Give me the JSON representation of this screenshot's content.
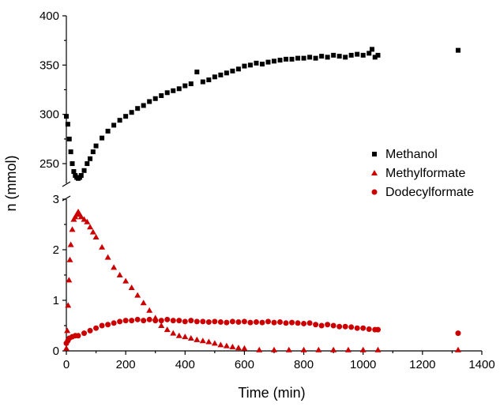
{
  "chart_data": {
    "type": "scatter",
    "xlabel": "Time (min)",
    "ylabel": "n (mmol)",
    "xlim": [
      0,
      1400
    ],
    "x_ticks": [
      "0",
      "200",
      "400",
      "600",
      "800",
      "1000",
      "1200",
      "1400"
    ],
    "y_break": true,
    "upper_panel": {
      "ylim": [
        230,
        400
      ],
      "y_ticks": [
        "250",
        "300",
        "350",
        "400"
      ]
    },
    "lower_panel": {
      "ylim": [
        0,
        3
      ],
      "y_ticks": [
        "0",
        "1",
        "2",
        "3"
      ]
    },
    "legend_placement": "right",
    "colors": {
      "Methanol": "#000000",
      "Methylformate": "#cc0000",
      "Dodecylformate": "#cc0000"
    },
    "series": [
      {
        "name": "Methanol",
        "marker": "square",
        "panel": "upper",
        "x": [
          0,
          5,
          10,
          15,
          20,
          25,
          30,
          35,
          40,
          45,
          50,
          60,
          70,
          80,
          90,
          100,
          120,
          140,
          160,
          180,
          200,
          220,
          240,
          260,
          280,
          300,
          320,
          340,
          360,
          380,
          400,
          420,
          440,
          460,
          480,
          500,
          520,
          540,
          560,
          580,
          600,
          620,
          640,
          660,
          680,
          700,
          720,
          740,
          760,
          780,
          800,
          820,
          840,
          860,
          880,
          900,
          920,
          940,
          960,
          980,
          1000,
          1020,
          1030,
          1040,
          1050,
          1320
        ],
        "y": [
          298,
          290,
          275,
          262,
          250,
          242,
          238,
          236,
          235,
          236,
          238,
          243,
          250,
          255,
          262,
          268,
          276,
          283,
          289,
          294,
          298,
          302,
          306,
          309,
          313,
          316,
          319,
          322,
          324,
          326,
          329,
          331,
          343,
          333,
          335,
          338,
          340,
          342,
          344,
          346,
          349,
          350,
          352,
          351,
          353,
          354,
          355,
          356,
          356,
          357,
          357,
          358,
          357,
          359,
          358,
          360,
          359,
          358,
          360,
          361,
          360,
          362,
          366,
          358,
          360,
          365
        ]
      },
      {
        "name": "Methylformate",
        "marker": "triangle",
        "panel": "lower",
        "x": [
          0,
          3,
          6,
          9,
          12,
          15,
          20,
          25,
          30,
          35,
          40,
          45,
          50,
          60,
          70,
          80,
          90,
          100,
          120,
          140,
          160,
          180,
          200,
          220,
          240,
          260,
          280,
          300,
          320,
          340,
          360,
          380,
          400,
          420,
          440,
          460,
          480,
          500,
          520,
          540,
          560,
          580,
          600,
          650,
          700,
          750,
          800,
          850,
          900,
          950,
          1000,
          1050,
          1320
        ],
        "y": [
          0.05,
          0.4,
          0.9,
          1.4,
          1.8,
          2.1,
          2.4,
          2.6,
          2.65,
          2.7,
          2.75,
          2.7,
          2.65,
          2.6,
          2.55,
          2.45,
          2.35,
          2.25,
          2.05,
          1.85,
          1.65,
          1.5,
          1.38,
          1.25,
          1.1,
          0.95,
          0.8,
          0.65,
          0.5,
          0.42,
          0.35,
          0.3,
          0.28,
          0.25,
          0.22,
          0.2,
          0.18,
          0.15,
          0.12,
          0.1,
          0.08,
          0.06,
          0.05,
          0.02,
          0.02,
          0.02,
          0.02,
          0.02,
          0.02,
          0.02,
          0.02,
          0.02,
          0.02
        ]
      },
      {
        "name": "Dodecylformate",
        "marker": "circle",
        "panel": "lower",
        "x": [
          0,
          5,
          10,
          20,
          30,
          40,
          60,
          80,
          100,
          120,
          140,
          160,
          180,
          200,
          220,
          240,
          260,
          280,
          300,
          320,
          340,
          360,
          380,
          400,
          420,
          440,
          460,
          480,
          500,
          520,
          540,
          560,
          580,
          600,
          620,
          640,
          660,
          680,
          700,
          720,
          740,
          760,
          780,
          800,
          820,
          840,
          860,
          880,
          900,
          920,
          940,
          960,
          980,
          1000,
          1020,
          1040,
          1050,
          1320
        ],
        "y": [
          0.15,
          0.2,
          0.25,
          0.28,
          0.3,
          0.3,
          0.35,
          0.4,
          0.45,
          0.5,
          0.52,
          0.55,
          0.58,
          0.6,
          0.6,
          0.62,
          0.6,
          0.62,
          0.6,
          0.6,
          0.62,
          0.6,
          0.6,
          0.58,
          0.6,
          0.58,
          0.58,
          0.57,
          0.58,
          0.57,
          0.56,
          0.58,
          0.57,
          0.58,
          0.56,
          0.57,
          0.56,
          0.58,
          0.56,
          0.57,
          0.55,
          0.56,
          0.55,
          0.54,
          0.55,
          0.52,
          0.5,
          0.52,
          0.5,
          0.48,
          0.48,
          0.47,
          0.45,
          0.45,
          0.43,
          0.42,
          0.42,
          0.35
        ]
      }
    ]
  }
}
